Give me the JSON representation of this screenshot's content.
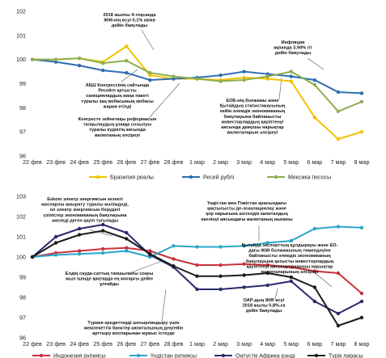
{
  "chart_data": [
    {
      "type": "line",
      "categories": [
        "22 фев",
        "23 фев",
        "24 фев",
        "25 фев",
        "26 фев",
        "27 фев",
        "28 фев",
        "1 мар",
        "2 мар",
        "3 мар",
        "4 мар",
        "5 мар",
        "6 мар",
        "7 мар",
        "8 мар"
      ],
      "ylim": [
        96,
        102
      ],
      "yticks": [
        96,
        97,
        98,
        99,
        100,
        101,
        102
      ],
      "grid": false,
      "legend": "bottom",
      "series": [
        {
          "name": "Бразилия реалы",
          "color": "#f2c200",
          "values": [
            100,
            100.0,
            100.05,
            99.9,
            100.55,
            99.35,
            99.2,
            99.2,
            99.15,
            99.25,
            99.2,
            99.1,
            97.6,
            96.7,
            97.0
          ]
        },
        {
          "name": "Ресей рублі",
          "color": "#2e6db0",
          "values": [
            100,
            99.9,
            99.75,
            99.55,
            99.45,
            99.15,
            99.2,
            99.25,
            99.35,
            99.5,
            99.4,
            99.3,
            99.15,
            98.65,
            98.6
          ]
        },
        {
          "name": "Мексика песосы",
          "color": "#8fae4d",
          "values": [
            100,
            100.0,
            100.05,
            99.85,
            99.95,
            99.45,
            99.3,
            99.2,
            99.1,
            99.15,
            99.3,
            99.5,
            98.95,
            97.85,
            98.25
          ]
        }
      ],
      "annotations": [
        {
          "lines": [
            "2018 жылғы 4-тоқсанда",
            "ЖІӨ-нің өсуі 0,1% кв/кв",
            "дейін баяулады"
          ]
        },
        {
          "lines": [
            "АҚШ Конгрессінің сайтында",
            "Ресейге қатысты",
            "санкциялардың жаңа пакеті",
            "туралы заң жобасының жобасы",
            "жария етілді"
          ]
        },
        {
          "lines": [
            "Конгресте зейнетақы реформасын",
            "талқылаудың ұзаққа созылуы",
            "туралы күдіктің аясында",
            "валютаның әлсіреуі"
          ]
        },
        {
          "lines": [
            "Инфляция",
            "ақпанда 3,94% г/г",
            "дейін баяулады"
          ]
        },
        {
          "lines": [
            "ЕОБ-нің болжамы және",
            "Қытайдың статистикасының",
            "кейін әлемдік экономиканың",
            "баяулауына байланысты",
            "инвесторлардың қауіптенуі",
            "аясында дамушы нарықтар",
            "валюталарын әлсіреуі"
          ]
        }
      ]
    },
    {
      "type": "line",
      "categories": [
        "22 фев",
        "23 фев",
        "24 фев",
        "25 фев",
        "26 фев",
        "27 фев",
        "28 фев",
        "1 мар",
        "2 мар",
        "3 мар",
        "4 мар",
        "5 мар",
        "6 мар",
        "7 мар",
        "8 мар"
      ],
      "ylim": [
        96,
        103
      ],
      "yticks": [
        96,
        97,
        98,
        99,
        100,
        101,
        102,
        103
      ],
      "grid": false,
      "legend": "bottom",
      "series": [
        {
          "name": "Индонезия рупиясы",
          "color": "#c8323c",
          "values": [
            100,
            100.2,
            100.3,
            100.4,
            100.45,
            100.3,
            99.9,
            99.6,
            99.6,
            99.65,
            99.6,
            99.5,
            99.3,
            99.2,
            98.2
          ]
        },
        {
          "name": "Үндістан рупиясы",
          "color": "#2aa6c8",
          "values": [
            100,
            100.1,
            100.15,
            100.2,
            100.3,
            100.0,
            100.55,
            100.5,
            100.5,
            100.55,
            100.7,
            100.8,
            101.4,
            101.5,
            101.45
          ]
        },
        {
          "name": "Оңтүстік Африка рэнді",
          "color": "#2a2a6c",
          "values": [
            100,
            101.0,
            101.4,
            101.6,
            101.2,
            100.1,
            99.5,
            98.4,
            98.4,
            98.5,
            98.6,
            98.8,
            97.8,
            97.2,
            97.8
          ]
        },
        {
          "name": "Түрік лирасы",
          "color": "#1c1c1c",
          "values": [
            100,
            100.7,
            101.1,
            101.3,
            100.9,
            100.15,
            99.55,
            99.05,
            99.05,
            99.1,
            99.2,
            99.0,
            98.5,
            96.6,
            97.0
          ]
        }
      ],
      "annotations": [
        {
          "lines": [
            "Eskom электр энергиясын кезекті",
            "жоспарлы ажырату туралы мәлімдеді,",
            "ол электр энергиясын берудегі",
            "үзілістер экономиканың баяулауына",
            "әкеледі деген қауіп туғызады"
          ]
        },
        {
          "lines": [
            "Үндістан мен Пәкістан арасындағы",
            "қақтығысты де-эскалациялау және",
            "қор нарығына шетелдік капиталдың",
            "әкелінуі аясындағы валютаның нығаюы"
          ]
        },
        {
          "lines": [
            "Қытайда экспорттың құлдырауы және ЕО-",
            "дағы ЖІӨ болжамының төмендеуіне",
            "байланысты әлемдік экономиканың",
            "баяулауына қатысты инвесторлардың",
            "қауіптенуі аясында дамушы нарықтар",
            "валюталарының әлсіреуі"
          ]
        },
        {
          "lines": [
            "Елдің сауда-саттық тапшылығы соңғы",
            "жыл ішінде қаңтарда ең жоғарғы дейін",
            "ұлғайды"
          ]
        },
        {
          "lines": [
            "ОАР-дың ЖІӨ өсуі",
            "2018 жылы 0,8%-ға",
            "дейін баяулады"
          ]
        },
        {
          "lines": [
            "Түркия кредиттерді шоғырландыру үшін",
            "мемлекеттік банктер капиталының деңгейін",
            "арттыру жоспарынан жұмыс істеуде"
          ]
        }
      ]
    }
  ]
}
